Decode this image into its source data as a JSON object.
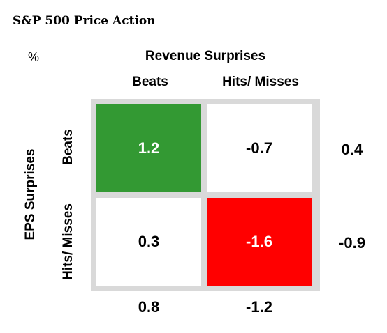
{
  "title": "S&P 500 Price Action",
  "unit": "%",
  "chart_data": {
    "type": "heatmap",
    "title": "S&P 500 Price Action",
    "unit": "%",
    "x_axis_title": "Revenue Surprises",
    "y_axis_title": "EPS Surprises",
    "columns": [
      "Beats",
      "Hits/ Misses"
    ],
    "rows": [
      "Beats",
      "Hits/ Misses"
    ],
    "values": [
      [
        1.2,
        -0.7
      ],
      [
        0.3,
        -1.6
      ]
    ],
    "row_totals": [
      0.4,
      -0.9
    ],
    "column_totals": [
      0.8,
      -1.2
    ],
    "cell_labels": [
      [
        "1.2",
        "-0.7"
      ],
      [
        "0.3",
        "-1.6"
      ]
    ],
    "row_total_labels": [
      "0.4",
      "-0.9"
    ],
    "column_total_labels": [
      "0.8",
      "-1.2"
    ],
    "colors": {
      "positive_highlight": "#339933",
      "negative_highlight": "#ff0000",
      "neutral": "#ffffff",
      "frame": "#d9d9d9"
    }
  }
}
